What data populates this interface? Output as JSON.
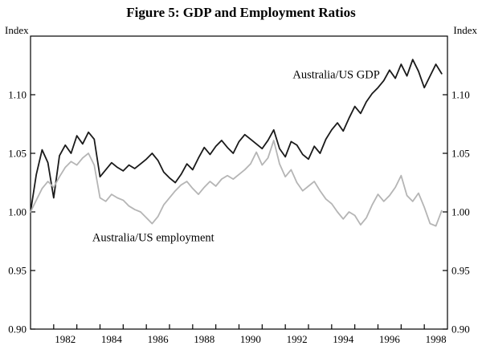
{
  "chart_data": {
    "type": "line",
    "title": "Figure 5: GDP and Employment Ratios",
    "y_axis_label_left": "Index",
    "y_axis_label_right": "Index",
    "xlim": [
      1981,
      1999
    ],
    "ylim": [
      0.9,
      1.15
    ],
    "y_ticks": [
      0.9,
      0.95,
      1.0,
      1.05,
      1.1
    ],
    "x_tick_years": [
      1981,
      1982,
      1983,
      1984,
      1985,
      1986,
      1987,
      1988,
      1989,
      1990,
      1991,
      1992,
      1993,
      1994,
      1995,
      1996,
      1997,
      1998,
      1999
    ],
    "x_labeled_years": [
      1982,
      1984,
      1986,
      1988,
      1990,
      1992,
      1994,
      1996,
      1998
    ],
    "x_start": 1981.0,
    "x_step": 0.25,
    "grid": false,
    "frame": true,
    "axis_color": "#000000",
    "series": [
      {
        "name": "Australia/US GDP",
        "color": "#1a1a1a",
        "line_width": 1.8,
        "annotation": {
          "text": "Australia/US GDP",
          "x": 1994.2,
          "y": 1.114
        },
        "values": [
          1.0,
          1.032,
          1.053,
          1.042,
          1.012,
          1.048,
          1.057,
          1.05,
          1.065,
          1.058,
          1.068,
          1.062,
          1.03,
          1.036,
          1.042,
          1.038,
          1.035,
          1.04,
          1.037,
          1.041,
          1.045,
          1.05,
          1.044,
          1.034,
          1.029,
          1.025,
          1.032,
          1.041,
          1.036,
          1.046,
          1.055,
          1.049,
          1.056,
          1.061,
          1.055,
          1.05,
          1.06,
          1.066,
          1.062,
          1.058,
          1.054,
          1.061,
          1.07,
          1.054,
          1.047,
          1.06,
          1.057,
          1.049,
          1.045,
          1.056,
          1.05,
          1.062,
          1.07,
          1.076,
          1.069,
          1.08,
          1.09,
          1.084,
          1.094,
          1.101,
          1.106,
          1.112,
          1.121,
          1.114,
          1.126,
          1.116,
          1.13,
          1.12,
          1.106,
          1.116,
          1.126,
          1.118
        ]
      },
      {
        "name": "Australia/US employment",
        "color": "#b5b5b5",
        "line_width": 1.8,
        "annotation": {
          "text": "Australia/US employment",
          "x": 1986.3,
          "y": 0.975
        },
        "values": [
          1.0,
          1.01,
          1.02,
          1.026,
          1.021,
          1.03,
          1.038,
          1.043,
          1.04,
          1.046,
          1.05,
          1.04,
          1.012,
          1.009,
          1.015,
          1.012,
          1.01,
          1.005,
          1.002,
          1.0,
          0.995,
          0.99,
          0.996,
          1.006,
          1.012,
          1.018,
          1.023,
          1.026,
          1.02,
          1.015,
          1.021,
          1.026,
          1.022,
          1.028,
          1.031,
          1.028,
          1.032,
          1.036,
          1.041,
          1.051,
          1.04,
          1.046,
          1.061,
          1.041,
          1.03,
          1.036,
          1.025,
          1.018,
          1.022,
          1.026,
          1.018,
          1.011,
          1.007,
          1.0,
          0.994,
          1.0,
          0.997,
          0.989,
          0.995,
          1.006,
          1.015,
          1.009,
          1.014,
          1.021,
          1.031,
          1.014,
          1.009,
          1.016,
          1.004,
          0.99,
          0.988,
          1.001
        ]
      }
    ]
  }
}
